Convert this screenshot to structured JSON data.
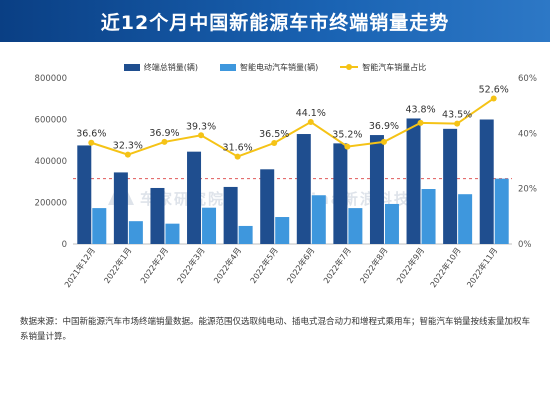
{
  "title": "近12个月中国新能源车市终端销量走势",
  "note": "数据来源：中国新能源汽车市场终端销量数据。能源范围仅选取纯电动、插电式混合动力和增程式乘用车；智能汽车销量按线索量加权车系销量计算。",
  "watermarks": [
    "车家研究院",
    "sina新浪科技"
  ],
  "colors": {
    "total_bar": "#1f4e8f",
    "smart_bar": "#3e97dd",
    "ratio_line": "#f5c316",
    "ref_line": "#e05a5a",
    "header": "#0a3f84"
  },
  "chart_data": {
    "type": "bar",
    "categories": [
      "2021年12月",
      "2022年1月",
      "2022年2月",
      "2022年3月",
      "2022年4月",
      "2022年5月",
      "2022年6月",
      "2022年7月",
      "2022年8月",
      "2022年9月",
      "2022年10月",
      "2022年11月"
    ],
    "series": [
      {
        "name": "终端总销量(辆)",
        "values": [
          475000,
          345000,
          270000,
          445000,
          275000,
          360000,
          530000,
          485000,
          525000,
          605000,
          555000,
          600000
        ]
      },
      {
        "name": "智能电动汽车销量(辆)",
        "values": [
          173000,
          110000,
          98000,
          175000,
          87000,
          130000,
          235000,
          173000,
          193000,
          265000,
          240000,
          315000
        ]
      },
      {
        "name": "智能汽车销量占比",
        "values": [
          36.6,
          32.3,
          36.9,
          39.3,
          31.6,
          36.5,
          44.1,
          35.2,
          36.9,
          43.8,
          43.5,
          52.6
        ],
        "axis": "right"
      }
    ],
    "ratio_labels": [
      "36.6%",
      "32.3%",
      "36.9%",
      "39.3%",
      "31.6%",
      "36.5%",
      "44.1%",
      "35.2%",
      "36.9%",
      "43.8%",
      "43.5%",
      "52.6%"
    ],
    "y_left": {
      "ylim": [
        0,
        800000
      ],
      "ticks": [
        0,
        200000,
        400000,
        600000,
        800000
      ]
    },
    "y_right": {
      "ylim": [
        0,
        60
      ],
      "ticks": [
        0,
        20,
        40,
        60
      ],
      "tick_labels": [
        "0%",
        "20%",
        "40%",
        "60%"
      ]
    },
    "ref_line_value": 315000,
    "legend_placement": "top-center",
    "grid": false
  }
}
